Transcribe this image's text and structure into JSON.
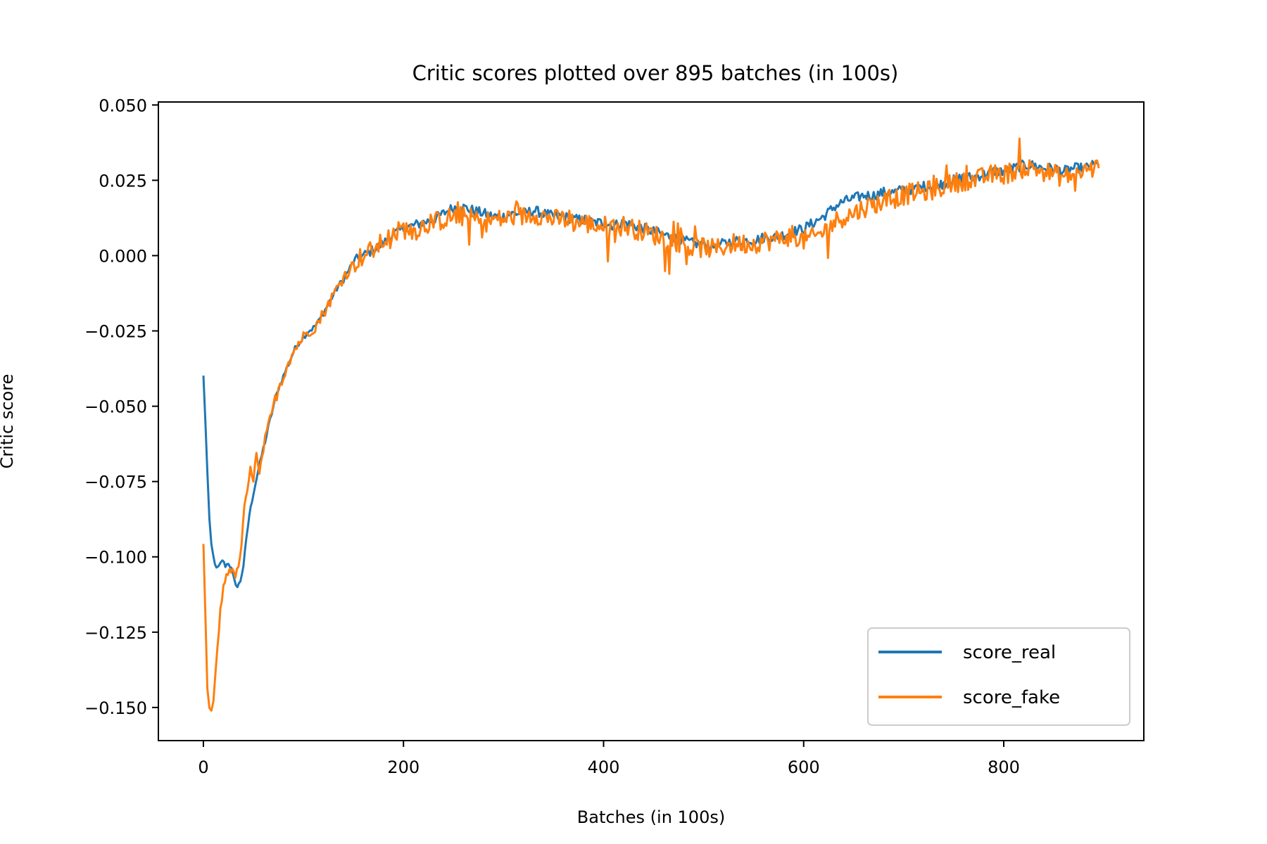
{
  "chart_data": {
    "type": "line",
    "title": "Critic scores plotted over 895 batches (in 100s)",
    "xlabel": "Batches (in 100s)",
    "ylabel": "Critic score",
    "xlim": [
      -45,
      940
    ],
    "ylim": [
      -0.161,
      0.051
    ],
    "x_ticks": [
      0,
      200,
      400,
      600,
      800
    ],
    "x_tick_labels": [
      "0",
      "200",
      "400",
      "600",
      "800"
    ],
    "y_ticks": [
      0.05,
      0.025,
      0.0,
      -0.025,
      -0.05,
      -0.075,
      -0.1,
      -0.125,
      -0.15
    ],
    "y_tick_labels": [
      "0.050",
      "0.025",
      "0.000",
      "−0.025",
      "−0.050",
      "−0.075",
      "−0.100",
      "−0.125",
      "−0.150"
    ],
    "grid": false,
    "legend_position": "lower-right",
    "series": [
      {
        "name": "score_real",
        "color": "#1f77b4",
        "points": [
          [
            0,
            -0.04
          ],
          [
            2,
            -0.055
          ],
          [
            4,
            -0.072
          ],
          [
            6,
            -0.088
          ],
          [
            8,
            -0.096
          ],
          [
            10,
            -0.1
          ],
          [
            13,
            -0.104
          ],
          [
            16,
            -0.103
          ],
          [
            19,
            -0.101
          ],
          [
            22,
            -0.103
          ],
          [
            25,
            -0.102
          ],
          [
            28,
            -0.104
          ],
          [
            31,
            -0.108
          ],
          [
            34,
            -0.11
          ],
          [
            37,
            -0.108
          ],
          [
            40,
            -0.103
          ],
          [
            43,
            -0.094
          ],
          [
            46,
            -0.086
          ],
          [
            50,
            -0.079
          ],
          [
            55,
            -0.071
          ],
          [
            60,
            -0.064
          ],
          [
            65,
            -0.057
          ],
          [
            70,
            -0.05
          ],
          [
            75,
            -0.044
          ],
          [
            80,
            -0.04
          ],
          [
            85,
            -0.036
          ],
          [
            90,
            -0.032
          ],
          [
            95,
            -0.029
          ],
          [
            100,
            -0.027
          ],
          [
            105,
            -0.025
          ],
          [
            110,
            -0.024
          ],
          [
            115,
            -0.022
          ],
          [
            120,
            -0.019
          ],
          [
            125,
            -0.016
          ],
          [
            130,
            -0.013
          ],
          [
            135,
            -0.01
          ],
          [
            140,
            -0.008
          ],
          [
            145,
            -0.005
          ],
          [
            150,
            -0.002
          ],
          [
            155,
            -0.001
          ],
          [
            160,
            0.0
          ],
          [
            165,
            0.001
          ],
          [
            170,
            0.002
          ],
          [
            175,
            0.003
          ],
          [
            180,
            0.004
          ],
          [
            185,
            0.006
          ],
          [
            190,
            0.007
          ],
          [
            195,
            0.008
          ],
          [
            200,
            0.009
          ],
          [
            210,
            0.01
          ],
          [
            220,
            0.011
          ],
          [
            230,
            0.012
          ],
          [
            240,
            0.014
          ],
          [
            250,
            0.016
          ],
          [
            260,
            0.016
          ],
          [
            270,
            0.015
          ],
          [
            280,
            0.014
          ],
          [
            290,
            0.013
          ],
          [
            300,
            0.013
          ],
          [
            310,
            0.014
          ],
          [
            320,
            0.014
          ],
          [
            330,
            0.015
          ],
          [
            340,
            0.014
          ],
          [
            350,
            0.013
          ],
          [
            360,
            0.013
          ],
          [
            370,
            0.012
          ],
          [
            380,
            0.012
          ],
          [
            390,
            0.011
          ],
          [
            400,
            0.011
          ],
          [
            410,
            0.01
          ],
          [
            420,
            0.011
          ],
          [
            430,
            0.01
          ],
          [
            440,
            0.009
          ],
          [
            450,
            0.008
          ],
          [
            460,
            0.007
          ],
          [
            470,
            0.006
          ],
          [
            480,
            0.005
          ],
          [
            490,
            0.004
          ],
          [
            500,
            0.004
          ],
          [
            510,
            0.003
          ],
          [
            520,
            0.004
          ],
          [
            530,
            0.005
          ],
          [
            540,
            0.005
          ],
          [
            550,
            0.005
          ],
          [
            560,
            0.006
          ],
          [
            570,
            0.006
          ],
          [
            580,
            0.007
          ],
          [
            590,
            0.008
          ],
          [
            600,
            0.009
          ],
          [
            610,
            0.011
          ],
          [
            620,
            0.013
          ],
          [
            630,
            0.016
          ],
          [
            640,
            0.018
          ],
          [
            650,
            0.019
          ],
          [
            660,
            0.02
          ],
          [
            670,
            0.02
          ],
          [
            680,
            0.021
          ],
          [
            690,
            0.021
          ],
          [
            700,
            0.022
          ],
          [
            710,
            0.022
          ],
          [
            720,
            0.023
          ],
          [
            730,
            0.023
          ],
          [
            740,
            0.024
          ],
          [
            750,
            0.025
          ],
          [
            760,
            0.026
          ],
          [
            770,
            0.026
          ],
          [
            780,
            0.027
          ],
          [
            790,
            0.028
          ],
          [
            800,
            0.028
          ],
          [
            810,
            0.029
          ],
          [
            820,
            0.03
          ],
          [
            830,
            0.03
          ],
          [
            840,
            0.029
          ],
          [
            850,
            0.029
          ],
          [
            860,
            0.028
          ],
          [
            870,
            0.029
          ],
          [
            880,
            0.029
          ],
          [
            890,
            0.03
          ],
          [
            895,
            0.03
          ]
        ]
      },
      {
        "name": "score_fake",
        "color": "#ff7f0e",
        "points": [
          [
            0,
            -0.095
          ],
          [
            2,
            -0.12
          ],
          [
            4,
            -0.144
          ],
          [
            6,
            -0.15
          ],
          [
            8,
            -0.152
          ],
          [
            10,
            -0.148
          ],
          [
            12,
            -0.14
          ],
          [
            14,
            -0.13
          ],
          [
            17,
            -0.118
          ],
          [
            20,
            -0.11
          ],
          [
            23,
            -0.106
          ],
          [
            26,
            -0.104
          ],
          [
            29,
            -0.105
          ],
          [
            32,
            -0.106
          ],
          [
            35,
            -0.104
          ],
          [
            38,
            -0.096
          ],
          [
            41,
            -0.084
          ],
          [
            44,
            -0.078
          ],
          [
            47,
            -0.071
          ],
          [
            50,
            -0.074
          ],
          [
            53,
            -0.066
          ],
          [
            56,
            -0.073
          ],
          [
            60,
            -0.064
          ],
          [
            65,
            -0.057
          ],
          [
            70,
            -0.05
          ],
          [
            75,
            -0.044
          ],
          [
            80,
            -0.04
          ],
          [
            85,
            -0.035
          ],
          [
            90,
            -0.032
          ],
          [
            95,
            -0.029
          ],
          [
            100,
            -0.027
          ],
          [
            105,
            -0.025
          ],
          [
            110,
            -0.024
          ],
          [
            115,
            -0.022
          ],
          [
            120,
            -0.019
          ],
          [
            125,
            -0.016
          ],
          [
            130,
            -0.013
          ],
          [
            135,
            -0.01
          ],
          [
            140,
            -0.007
          ],
          [
            145,
            -0.005
          ],
          [
            150,
            -0.003
          ],
          [
            155,
            -0.001
          ],
          [
            160,
            0.0
          ],
          [
            165,
            0.001
          ],
          [
            170,
            0.002
          ],
          [
            175,
            0.003
          ],
          [
            180,
            0.005
          ],
          [
            185,
            0.006
          ],
          [
            190,
            0.007
          ],
          [
            195,
            0.008
          ],
          [
            200,
            0.009
          ],
          [
            210,
            0.008
          ],
          [
            220,
            0.01
          ],
          [
            230,
            0.011
          ],
          [
            240,
            0.012
          ],
          [
            250,
            0.013
          ],
          [
            260,
            0.013
          ],
          [
            270,
            0.012
          ],
          [
            280,
            0.011
          ],
          [
            290,
            0.012
          ],
          [
            300,
            0.012
          ],
          [
            310,
            0.013
          ],
          [
            320,
            0.013
          ],
          [
            330,
            0.014
          ],
          [
            340,
            0.013
          ],
          [
            350,
            0.012
          ],
          [
            360,
            0.012
          ],
          [
            370,
            0.011
          ],
          [
            380,
            0.011
          ],
          [
            390,
            0.01
          ],
          [
            400,
            0.01
          ],
          [
            410,
            0.009
          ],
          [
            420,
            0.01
          ],
          [
            430,
            0.009
          ],
          [
            440,
            0.008
          ],
          [
            450,
            0.007
          ],
          [
            460,
            0.006
          ],
          [
            470,
            0.005
          ],
          [
            480,
            0.004
          ],
          [
            490,
            0.002
          ],
          [
            500,
            0.003
          ],
          [
            510,
            0.002
          ],
          [
            520,
            0.003
          ],
          [
            530,
            0.004
          ],
          [
            540,
            0.004
          ],
          [
            550,
            0.004
          ],
          [
            560,
            0.005
          ],
          [
            570,
            0.005
          ],
          [
            580,
            0.006
          ],
          [
            590,
            0.007
          ],
          [
            600,
            0.005
          ],
          [
            610,
            0.006
          ],
          [
            620,
            0.008
          ],
          [
            630,
            0.011
          ],
          [
            640,
            0.013
          ],
          [
            650,
            0.014
          ],
          [
            660,
            0.016
          ],
          [
            670,
            0.017
          ],
          [
            680,
            0.018
          ],
          [
            690,
            0.019
          ],
          [
            700,
            0.02
          ],
          [
            710,
            0.021
          ],
          [
            720,
            0.021
          ],
          [
            730,
            0.022
          ],
          [
            740,
            0.023
          ],
          [
            750,
            0.024
          ],
          [
            760,
            0.025
          ],
          [
            770,
            0.025
          ],
          [
            780,
            0.026
          ],
          [
            790,
            0.027
          ],
          [
            800,
            0.027
          ],
          [
            810,
            0.028
          ],
          [
            820,
            0.029
          ],
          [
            830,
            0.029
          ],
          [
            840,
            0.028
          ],
          [
            850,
            0.027
          ],
          [
            860,
            0.026
          ],
          [
            870,
            0.027
          ],
          [
            880,
            0.028
          ],
          [
            890,
            0.029
          ],
          [
            895,
            0.029
          ]
        ]
      }
    ]
  }
}
